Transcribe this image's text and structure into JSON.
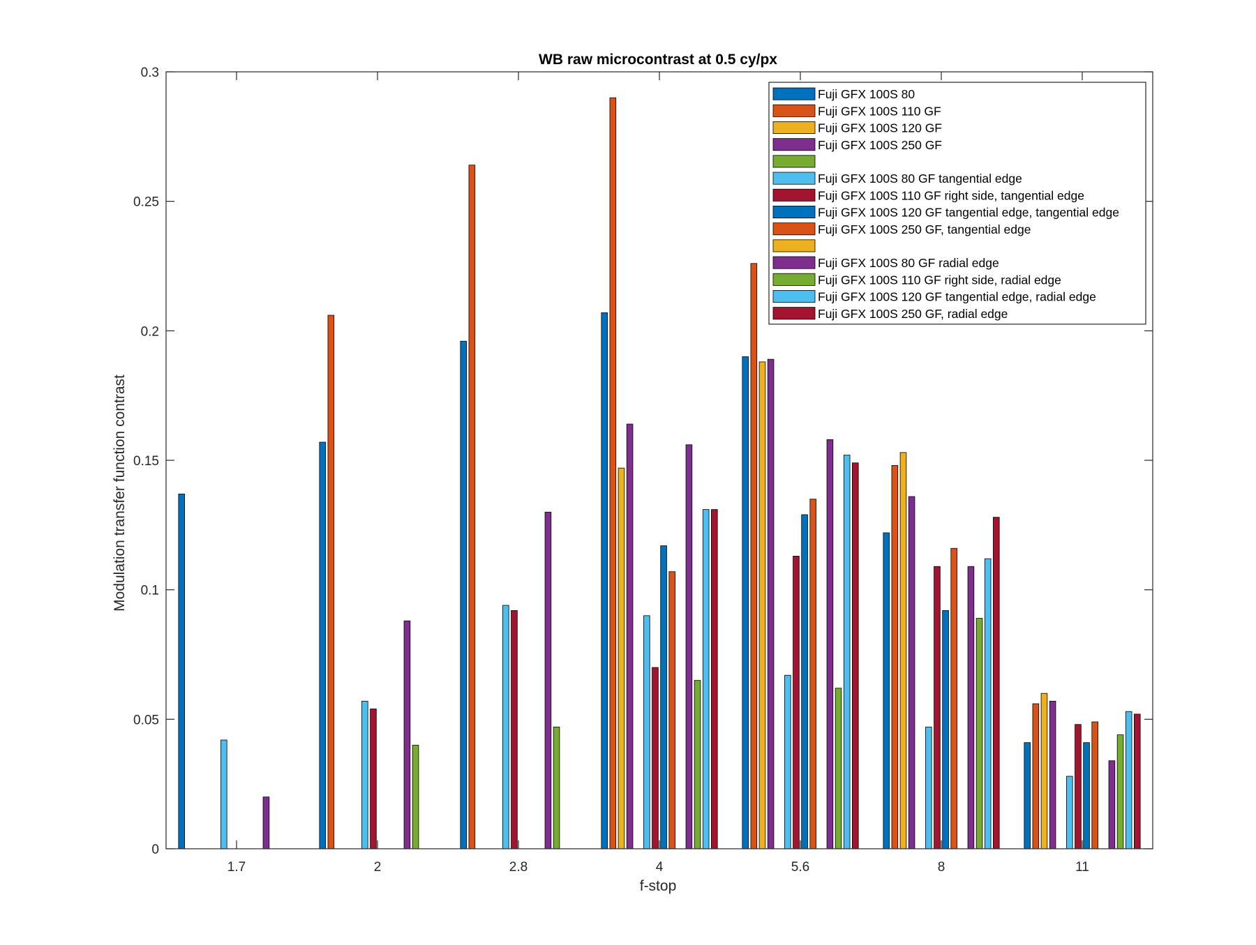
{
  "chart_data": {
    "type": "bar",
    "title": "WB raw  microcontrast at 0.5 cy/px",
    "xlabel": "f-stop",
    "ylabel": "Modulation transfer function contrast",
    "ylim": [
      0,
      0.3
    ],
    "yticks": [
      "0",
      "0.05",
      "0.1",
      "0.15",
      "0.2",
      "0.25",
      "0.3"
    ],
    "grid": false,
    "legend_position": "top-right",
    "categories": [
      "1.7",
      "2",
      "2.8",
      "4",
      "5.6",
      "8",
      "11"
    ],
    "series": [
      {
        "name": "Fuji GFX 100S 80",
        "color": "#0072BD",
        "values": [
          0.137,
          0.157,
          0.196,
          0.207,
          0.19,
          0.122,
          0.041
        ]
      },
      {
        "name": "Fuji GFX 100S 110 GF",
        "color": "#D95319",
        "values": [
          0,
          0.206,
          0.264,
          0.29,
          0.226,
          0.148,
          0.056
        ]
      },
      {
        "name": "Fuji GFX 100S 120 GF",
        "color": "#EDB120",
        "values": [
          0,
          0,
          0,
          0.147,
          0.188,
          0.153,
          0.06
        ]
      },
      {
        "name": "Fuji GFX 100S 250 GF",
        "color": "#7E2F8E",
        "values": [
          0,
          0,
          0,
          0.164,
          0.189,
          0.136,
          0.057
        ]
      },
      {
        "name": "",
        "color": "#77AC30",
        "values": [
          0,
          0,
          0,
          0,
          0,
          0,
          0
        ]
      },
      {
        "name": "Fuji GFX 100S 80 GF tangential edge",
        "color": "#4DBEEE",
        "values": [
          0.042,
          0.057,
          0.094,
          0.09,
          0.067,
          0.047,
          0.028
        ]
      },
      {
        "name": "Fuji GFX 100S 110 GF right side, tangential edge",
        "color": "#A2142F",
        "values": [
          0,
          0.054,
          0.092,
          0.07,
          0.113,
          0.109,
          0.048
        ]
      },
      {
        "name": "Fuji GFX 100S 120 GF tangential edge, tangential edge",
        "color": "#0072BD",
        "values": [
          0,
          0,
          0,
          0.117,
          0.129,
          0.092,
          0.041
        ]
      },
      {
        "name": "Fuji GFX 100S 250 GF, tangential edge",
        "color": "#D95319",
        "values": [
          0,
          0,
          0,
          0.107,
          0.135,
          0.116,
          0.049
        ]
      },
      {
        "name": "",
        "color": "#EDB120",
        "values": [
          0,
          0,
          0,
          0,
          0,
          0,
          0
        ]
      },
      {
        "name": "Fuji GFX 100S 80 GF radial edge",
        "color": "#7E2F8E",
        "values": [
          0.02,
          0.088,
          0.13,
          0.156,
          0.158,
          0.109,
          0.034
        ]
      },
      {
        "name": "Fuji GFX 100S 110 GF right side, radial edge",
        "color": "#77AC30",
        "values": [
          0,
          0.04,
          0.047,
          0.065,
          0.062,
          0.089,
          0.044
        ]
      },
      {
        "name": "Fuji GFX 100S 120 GF tangential edge, radial edge",
        "color": "#4DBEEE",
        "values": [
          0,
          0,
          0,
          0.131,
          0.152,
          0.112,
          0.053
        ]
      },
      {
        "name": "Fuji GFX 100S 250 GF, radial edge",
        "color": "#A2142F",
        "values": [
          0,
          0,
          0,
          0.131,
          0.149,
          0.128,
          0.052
        ]
      }
    ]
  }
}
